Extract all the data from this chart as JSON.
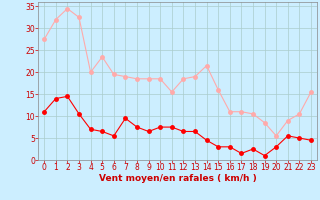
{
  "x": [
    0,
    1,
    2,
    3,
    4,
    5,
    6,
    7,
    8,
    9,
    10,
    11,
    12,
    13,
    14,
    15,
    16,
    17,
    18,
    19,
    20,
    21,
    22,
    23
  ],
  "wind_avg": [
    11,
    14,
    14.5,
    10.5,
    7,
    6.5,
    5.5,
    9.5,
    7.5,
    6.5,
    7.5,
    7.5,
    6.5,
    6.5,
    4.5,
    3,
    3,
    1.5,
    2.5,
    1,
    3,
    5.5,
    5,
    4.5
  ],
  "wind_gust": [
    27.5,
    32,
    34.5,
    32.5,
    20,
    23.5,
    19.5,
    19,
    18.5,
    18.5,
    18.5,
    15.5,
    18.5,
    19,
    21.5,
    16,
    11,
    11,
    10.5,
    8.5,
    5.5,
    9,
    10.5,
    15.5
  ],
  "avg_color": "#ff0000",
  "gust_color": "#ffaaaa",
  "bg_color": "#cceeff",
  "grid_color": "#aacccc",
  "xlabel": "Vent moyen/en rafales ( km/h )",
  "xlabel_color": "#cc0000",
  "tick_color": "#cc0000",
  "ylim": [
    0,
    36
  ],
  "yticks": [
    0,
    5,
    10,
    15,
    20,
    25,
    30,
    35
  ],
  "xticks": [
    0,
    1,
    2,
    3,
    4,
    5,
    6,
    7,
    8,
    9,
    10,
    11,
    12,
    13,
    14,
    15,
    16,
    17,
    18,
    19,
    20,
    21,
    22,
    23
  ],
  "marker_size": 2.5,
  "linewidth": 0.8
}
